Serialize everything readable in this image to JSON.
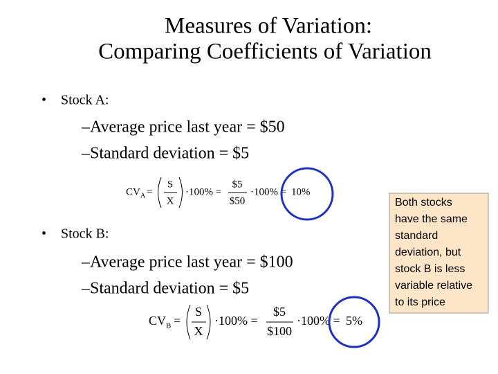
{
  "slide": {
    "title": [
      "Measures of Variation:",
      "Comparing Coefficients of Variation"
    ],
    "stock_a": {
      "bullet": "Stock A:",
      "items": [
        "Average price last year = $50",
        "Standard deviation = $5"
      ],
      "formula": {
        "lhs": "CV",
        "sub": "A",
        "eq": "=",
        "num": "S",
        "den": "X",
        "mult": "·100% =",
        "num2": "$5",
        "den2": "$50",
        "mult2": "·100% =",
        "result": "10%"
      }
    },
    "stock_b": {
      "bullet": "Stock B:",
      "items": [
        "Average price last year = $100",
        "Standard deviation = $5"
      ],
      "formula": {
        "lhs": "CV",
        "sub": "B",
        "eq": "=",
        "num": "S",
        "den": "X",
        "mult": "·100% =",
        "num2": "$5",
        "den2": "$100",
        "mult2": "·100% =",
        "result": "5%"
      }
    },
    "callout": [
      "Both stocks",
      "have the same",
      "standard",
      "deviation, but",
      "stock B is less",
      "variable relative",
      "to its price"
    ]
  }
}
